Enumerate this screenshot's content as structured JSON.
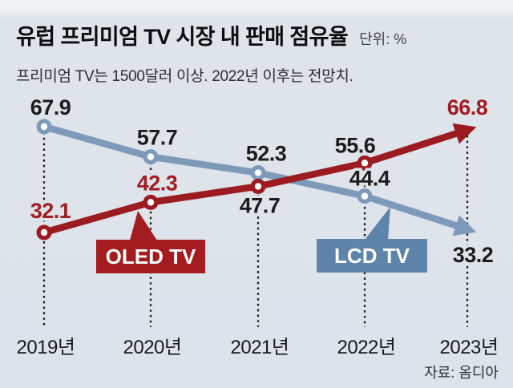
{
  "header": {
    "title": "유럽 프리미엄 TV 시장 내 판매 점유율",
    "unit_label": "단위: %",
    "subtitle": "프리미엄 TV는 1500달러 이상. 2022년 이후는 전망치."
  },
  "source_label": "자료: 옴디아",
  "chart_data": {
    "type": "line",
    "title": "유럽 프리미엄 TV 시장 내 판매 점유율",
    "subtitle": "프리미엄 TV는 1500달러 이상. 2022년 이후는 전망치.",
    "unit": "%",
    "source": "자료: 옴디아",
    "categories": [
      "2019년",
      "2020년",
      "2021년",
      "2022년",
      "2023년"
    ],
    "series": [
      {
        "name": "LCD TV",
        "trend": "declining",
        "color": "#7e9aba",
        "box_color": "#5f84ac",
        "values": [
          67.9,
          57.7,
          52.3,
          44.4,
          33.2
        ],
        "value_label_colors": [
          "#1c1c1c",
          "#1c1c1c",
          "#1c1c1c",
          "#1c1c1c",
          "#1c1c1c"
        ],
        "last_point_style": "arrowhead"
      },
      {
        "name": "OLED TV",
        "trend": "rising",
        "color": "#9b1b20",
        "box_color": "#a41c1f",
        "values": [
          32.1,
          42.3,
          47.7,
          55.6,
          66.8
        ],
        "value_label_colors": [
          "#a01d23",
          "#a01d23",
          "#1c1c1c",
          "#1c1c1c",
          "#a01d23"
        ],
        "last_point_style": "arrowhead"
      }
    ],
    "ylim": [
      25,
      75
    ],
    "xlabel": "",
    "ylabel": "",
    "grid": "vertical dotted drop-lines per category, no y-axis shown",
    "legend_position": "inline callout boxes attached to lines",
    "value_labels": true,
    "notes": "2022년 이후는 전망치 (values from 2022 onward are forecasts)"
  },
  "colors": {
    "background": "#dee4ea",
    "lcd_line": "#7e9aba",
    "lcd_box": "#5f84ac",
    "oled_line": "#9b1b20",
    "oled_box": "#a41c1f",
    "value_black": "#1c1c1c",
    "value_red": "#a01d23"
  }
}
